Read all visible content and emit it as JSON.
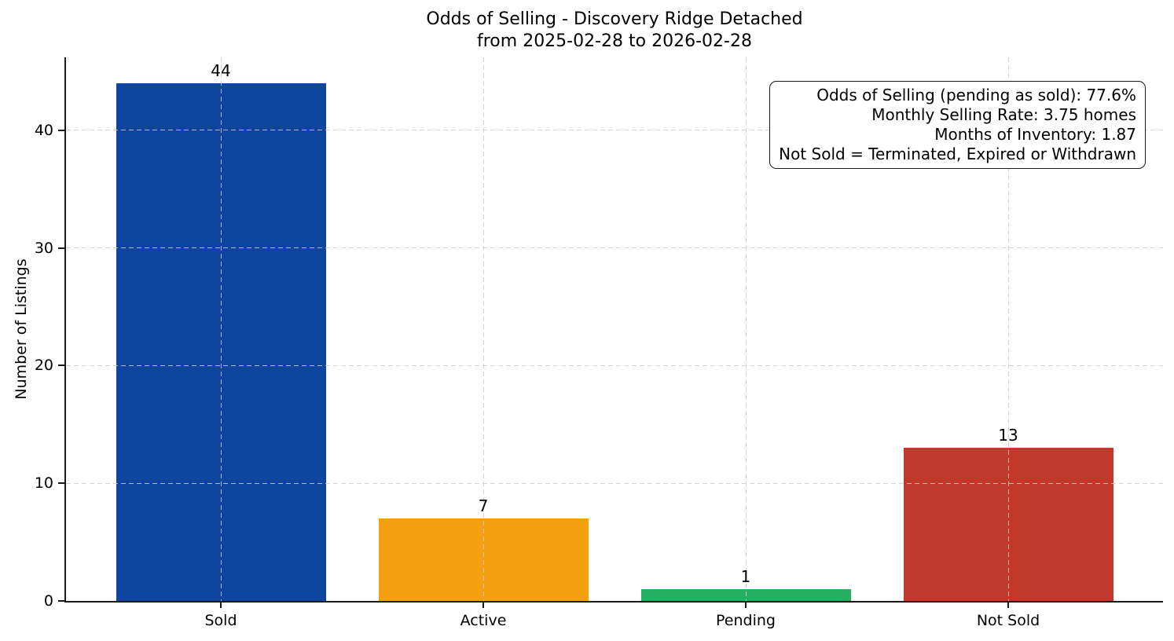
{
  "title": {
    "line1": "Odds of Selling - Discovery Ridge Detached",
    "line2": "from 2025-02-28 to 2026-02-28"
  },
  "annotation": {
    "lines": [
      "Odds of Selling (pending as sold): 77.6%",
      "Monthly Selling Rate: 3.75 homes",
      "Months of Inventory: 1.87",
      "Not Sold = Terminated, Expired or Withdrawn"
    ]
  },
  "chart_data": {
    "type": "bar",
    "title": "Odds of Selling - Discovery Ridge Detached\nfrom 2025-02-28 to 2026-02-28",
    "categories": [
      "Sold",
      "Active",
      "Pending",
      "Not Sold"
    ],
    "values": [
      44,
      7,
      1,
      13
    ],
    "bar_colors": [
      "#0e459f",
      "#f5a011",
      "#27ae60",
      "#c0392b"
    ],
    "xlabel": "",
    "ylabel": "Number of Listings",
    "ylim": [
      0,
      46.2
    ],
    "yticks": [
      0,
      10,
      20,
      30,
      40
    ],
    "grid": true,
    "grid_linestyle": "dashed",
    "legend_position": "none",
    "annotations": [
      "Odds of Selling (pending as sold): 77.6%",
      "Monthly Selling Rate: 3.75 homes",
      "Months of Inventory: 1.87",
      "Not Sold = Terminated, Expired or Withdrawn"
    ],
    "annotation_position": "top-right"
  },
  "colors": {
    "sold": "#0e459f",
    "active": "#f5a011",
    "pending": "#27ae60",
    "not_sold": "#c0392b",
    "grid": "#d9d9d9",
    "axis": "#1a1a1a",
    "background": "#ffffff",
    "text": "#000000"
  }
}
